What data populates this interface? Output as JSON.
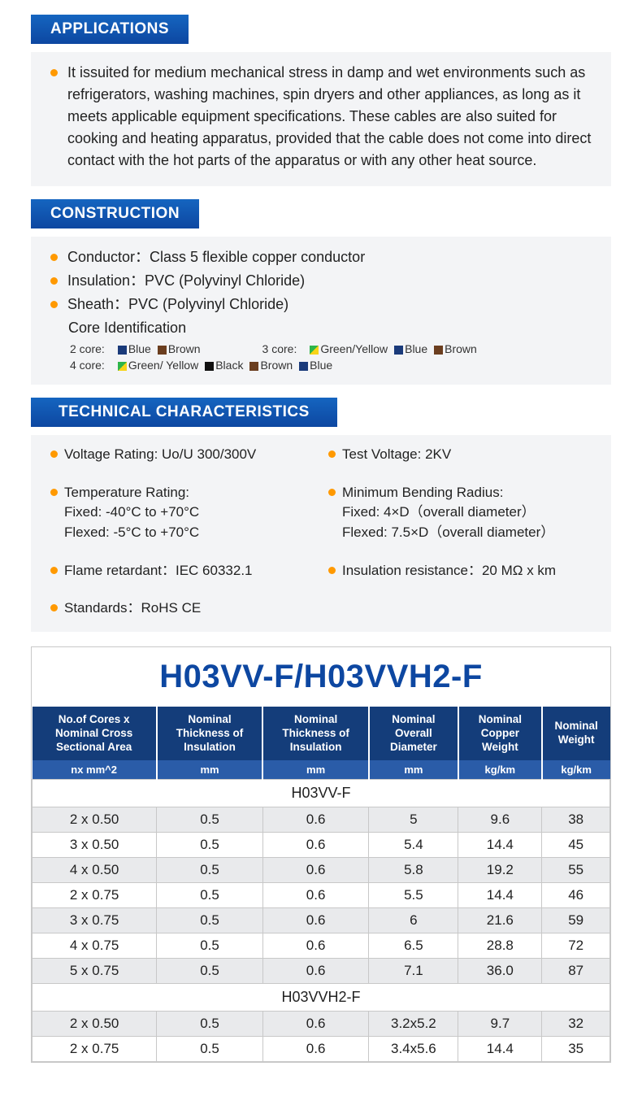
{
  "colors": {
    "primary": "#0d47a1",
    "header_grad_top": "#1565c0",
    "bullet": "#ff9900",
    "panel": "#f3f4f6",
    "th_dark": "#143d7a",
    "th_light": "#2a5ca8",
    "row_alt": "#e9eaec",
    "border": "#c8c8c8"
  },
  "sections": {
    "applications": {
      "title": "APPLICATIONS",
      "text": "It issuited for medium mechanical stress in damp and wet environments such as refrigerators, washing machines, spin dryers and other appliances, as long as it meets applicable equipment specifications. These cables are also suited for cooking and heating apparatus, provided that the cable does not come into direct contact with the hot parts of the apparatus or with any other heat source."
    },
    "construction": {
      "title": "CONSTRUCTION",
      "items": [
        "Conductor：Class 5 flexible copper conductor",
        "Insulation：PVC (Polyvinyl Chloride)",
        "Sheath：PVC (Polyvinyl Chloride)"
      ],
      "core_id_label": "Core Identification",
      "cores": {
        "c2_label": "2 core:",
        "c2": [
          {
            "c": "blue",
            "t": "Blue"
          },
          {
            "c": "brown",
            "t": "Brown"
          }
        ],
        "c3_label": "3 core:",
        "c3": [
          {
            "c": "gy",
            "t": "Green/Yellow"
          },
          {
            "c": "blue",
            "t": "Blue"
          },
          {
            "c": "brown",
            "t": "Brown"
          }
        ],
        "c4_label": "4 core:",
        "c4": [
          {
            "c": "gy",
            "t": "Green/ Yellow"
          },
          {
            "c": "black",
            "t": "Black"
          },
          {
            "c": "brown",
            "t": "Brown"
          },
          {
            "c": "blue",
            "t": "Blue"
          }
        ]
      }
    },
    "tech": {
      "title": "TECHNICAL CHARACTERISTICS",
      "items": [
        {
          "t": "Voltage Rating: Uo/U 300/300V"
        },
        {
          "t": "Test Voltage: 2KV"
        },
        {
          "t": "Temperature Rating:\nFixed: -40°C to +70°C\nFlexed: -5°C to +70°C"
        },
        {
          "t": "Minimum Bending Radius:\nFixed: 4×D（overall diameter）\nFlexed: 7.5×D（overall diameter）"
        },
        {
          "t": "Flame retardant：IEC 60332.1"
        },
        {
          "t": "Insulation resistance：20 MΩ x km"
        },
        {
          "t": "Standards：RoHS CE",
          "full": true
        }
      ]
    }
  },
  "table": {
    "title": "H03VV-F/H03VVH2-F",
    "columns": [
      {
        "h": "No.of Cores x Nominal Cross Sectional Area",
        "u": "nx mm^2"
      },
      {
        "h": "Nominal Thickness of Insulation",
        "u": "mm"
      },
      {
        "h": "Nominal Thickness of Insulation",
        "u": "mm"
      },
      {
        "h": "Nominal Overall Diameter",
        "u": "mm"
      },
      {
        "h": "Nominal Copper Weight",
        "u": "kg/km"
      },
      {
        "h": "Nominal Weight",
        "u": "kg/km"
      }
    ],
    "groups": [
      {
        "name": "H03VV-F",
        "rows": [
          [
            "2 x 0.50",
            "0.5",
            "0.6",
            "5",
            "9.6",
            "38"
          ],
          [
            "3 x 0.50",
            "0.5",
            "0.6",
            "5.4",
            "14.4",
            "45"
          ],
          [
            "4 x 0.50",
            "0.5",
            "0.6",
            "5.8",
            "19.2",
            "55"
          ],
          [
            "2 x 0.75",
            "0.5",
            "0.6",
            "5.5",
            "14.4",
            "46"
          ],
          [
            "3 x 0.75",
            "0.5",
            "0.6",
            "6",
            "21.6",
            "59"
          ],
          [
            "4 x 0.75",
            "0.5",
            "0.6",
            "6.5",
            "28.8",
            "72"
          ],
          [
            "5 x 0.75",
            "0.5",
            "0.6",
            "7.1",
            "36.0",
            "87"
          ]
        ]
      },
      {
        "name": "H03VVH2-F",
        "rows": [
          [
            "2 x 0.50",
            "0.5",
            "0.6",
            "3.2x5.2",
            "9.7",
            "32"
          ],
          [
            "2 x 0.75",
            "0.5",
            "0.6",
            "3.4x5.6",
            "14.4",
            "35"
          ]
        ]
      }
    ]
  }
}
